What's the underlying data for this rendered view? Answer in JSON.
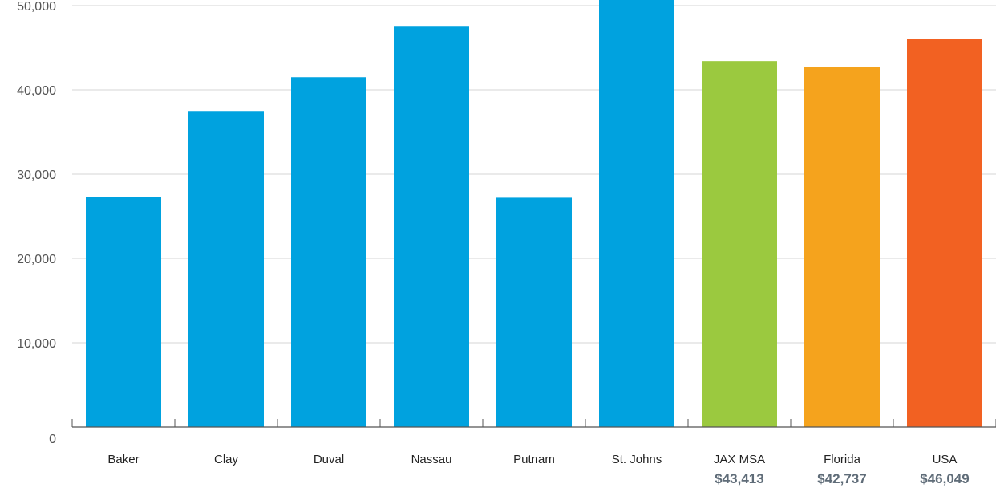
{
  "chart_data": {
    "type": "bar",
    "title": "",
    "xlabel": "",
    "ylabel": "",
    "ylim": [
      0,
      50000
    ],
    "yticks": [
      0,
      10000,
      20000,
      30000,
      40000,
      50000
    ],
    "ytick_labels": [
      "0",
      "10,000",
      "20,000",
      "30,000",
      "40,000",
      "50,000"
    ],
    "grid": true,
    "legend": "none",
    "categories": [
      "Baker",
      "Clay",
      "Duval",
      "Nassau",
      "Putnam",
      "St. Johns",
      "JAX MSA",
      "Florida",
      "USA"
    ],
    "values": [
      27300,
      37500,
      41500,
      47500,
      27200,
      51000,
      43413,
      42737,
      46049
    ],
    "colors": [
      "#00a2df",
      "#00a2df",
      "#00a2df",
      "#00a2df",
      "#00a2df",
      "#00a2df",
      "#9bc93f",
      "#f5a31d",
      "#f26122"
    ],
    "data_labels": [
      "",
      "",
      "",
      "",
      "",
      "",
      "$43,413",
      "$42,737",
      "$46,049"
    ]
  }
}
